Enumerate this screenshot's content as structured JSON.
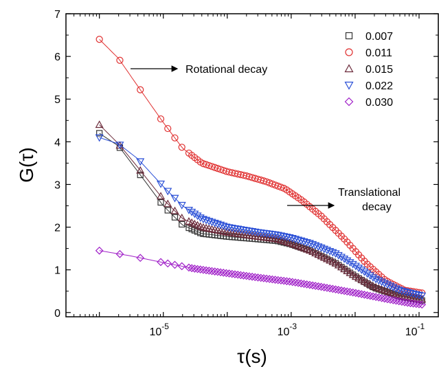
{
  "chart_data": {
    "type": "scatter",
    "xlabel": "τ(s)",
    "ylabel": "G(τ)",
    "x_scale": "log",
    "xlim": [
      3e-07,
      0.2
    ],
    "ylim": [
      -0.1,
      7
    ],
    "x_ticks": [
      {
        "value": 1e-05,
        "base": "10",
        "exp": "-5"
      },
      {
        "value": 0.001,
        "base": "10",
        "exp": "-3"
      },
      {
        "value": 0.1,
        "base": "10",
        "exp": "-1"
      }
    ],
    "y_ticks": [
      0,
      1,
      2,
      3,
      4,
      5,
      6,
      7
    ],
    "legend_position": "top-right",
    "grid": false,
    "annotations": [
      {
        "id": "rot",
        "lines": [
          "Rotational decay"
        ]
      },
      {
        "id": "trans",
        "lines": [
          "Translational",
          "decay"
        ]
      }
    ],
    "series": [
      {
        "name": "0.007",
        "marker": "square",
        "color": "#333333",
        "curve": [
          [
            1e-06,
            4.2
          ],
          [
            2e-06,
            3.9
          ],
          [
            4e-06,
            3.3
          ],
          [
            1e-05,
            2.5
          ],
          [
            2e-05,
            2.05
          ],
          [
            4e-05,
            1.85
          ],
          [
            0.0001,
            1.78
          ],
          [
            0.0003,
            1.72
          ],
          [
            0.0006,
            1.68
          ],
          [
            0.001,
            1.6
          ],
          [
            0.002,
            1.45
          ],
          [
            0.005,
            1.15
          ],
          [
            0.01,
            0.85
          ],
          [
            0.02,
            0.58
          ],
          [
            0.05,
            0.38
          ],
          [
            0.12,
            0.27
          ]
        ]
      },
      {
        "name": "0.011",
        "marker": "circle",
        "color": "#e03030",
        "curve": [
          [
            1e-06,
            6.4
          ],
          [
            2e-06,
            5.95
          ],
          [
            4e-06,
            5.3
          ],
          [
            1e-05,
            4.45
          ],
          [
            2e-05,
            3.85
          ],
          [
            4e-05,
            3.5
          ],
          [
            0.0001,
            3.3
          ],
          [
            0.0002,
            3.2
          ],
          [
            0.0004,
            3.07
          ],
          [
            0.0008,
            2.9
          ],
          [
            0.0015,
            2.62
          ],
          [
            0.003,
            2.25
          ],
          [
            0.007,
            1.7
          ],
          [
            0.015,
            1.15
          ],
          [
            0.03,
            0.75
          ],
          [
            0.06,
            0.52
          ],
          [
            0.12,
            0.45
          ]
        ]
      },
      {
        "name": "0.015",
        "marker": "triangle-up",
        "color": "#6b2a3a",
        "curve": [
          [
            1e-06,
            4.4
          ],
          [
            2e-06,
            3.95
          ],
          [
            4e-06,
            3.4
          ],
          [
            1e-05,
            2.65
          ],
          [
            2e-05,
            2.2
          ],
          [
            4e-05,
            2.0
          ],
          [
            0.0001,
            1.88
          ],
          [
            0.0003,
            1.78
          ],
          [
            0.0006,
            1.72
          ],
          [
            0.001,
            1.62
          ],
          [
            0.002,
            1.45
          ],
          [
            0.005,
            1.15
          ],
          [
            0.01,
            0.85
          ],
          [
            0.02,
            0.6
          ],
          [
            0.05,
            0.4
          ],
          [
            0.12,
            0.3
          ]
        ]
      },
      {
        "name": "0.022",
        "marker": "triangle-down",
        "color": "#2a4fd6",
        "curve": [
          [
            1e-06,
            4.1
          ],
          [
            2e-06,
            3.95
          ],
          [
            4e-06,
            3.6
          ],
          [
            1e-05,
            2.95
          ],
          [
            2e-05,
            2.5
          ],
          [
            4e-05,
            2.2
          ],
          [
            0.0001,
            2.0
          ],
          [
            0.0003,
            1.88
          ],
          [
            0.0006,
            1.82
          ],
          [
            0.001,
            1.75
          ],
          [
            0.002,
            1.62
          ],
          [
            0.005,
            1.38
          ],
          [
            0.01,
            1.1
          ],
          [
            0.02,
            0.8
          ],
          [
            0.05,
            0.52
          ],
          [
            0.12,
            0.38
          ]
        ]
      },
      {
        "name": "0.030",
        "marker": "diamond",
        "color": "#a020c8",
        "curve": [
          [
            1e-06,
            1.45
          ],
          [
            3e-06,
            1.33
          ],
          [
            1e-05,
            1.17
          ],
          [
            3e-05,
            1.03
          ],
          [
            0.0001,
            0.92
          ],
          [
            0.0003,
            0.82
          ],
          [
            0.001,
            0.72
          ],
          [
            0.003,
            0.6
          ],
          [
            0.01,
            0.46
          ],
          [
            0.03,
            0.32
          ],
          [
            0.07,
            0.22
          ],
          [
            0.12,
            0.18
          ]
        ]
      }
    ]
  }
}
